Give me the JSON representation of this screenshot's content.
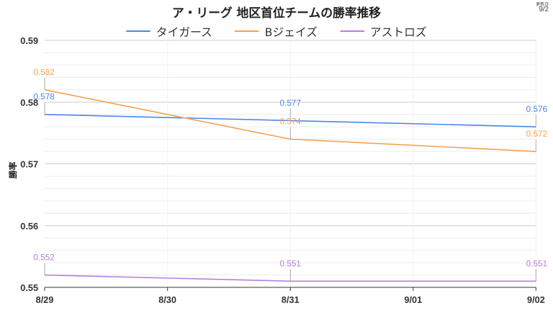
{
  "chart_data": {
    "type": "line",
    "title": "ア・リーグ 地区首位チームの勝率推移",
    "update_label": "更新日",
    "update_date": "9/2",
    "xlabel": "",
    "ylabel": "勝率",
    "ylim": [
      0.55,
      0.59
    ],
    "yticks": [
      "0.55",
      "0.56",
      "0.57",
      "0.58",
      "0.59"
    ],
    "grid": true,
    "legend_position": "top-center",
    "categories": [
      "8/29",
      "8/30",
      "8/31",
      "9/01",
      "9/02"
    ],
    "series": [
      {
        "name": "タイガース",
        "color": "#4a86e8",
        "points": [
          {
            "x": "8/29",
            "y": 0.578,
            "label": "0.578"
          },
          {
            "x": "8/31",
            "y": 0.577,
            "label": "0.577"
          },
          {
            "x": "9/02",
            "y": 0.576,
            "label": "0.576"
          }
        ]
      },
      {
        "name": "Bジェイズ",
        "color": "#f6a04d",
        "points": [
          {
            "x": "8/29",
            "y": 0.582,
            "label": "0.582"
          },
          {
            "x": "8/31",
            "y": 0.574,
            "label": "0.574"
          },
          {
            "x": "9/02",
            "y": 0.572,
            "label": "0.572"
          }
        ]
      },
      {
        "name": "アストロズ",
        "color": "#b57edc",
        "points": [
          {
            "x": "8/29",
            "y": 0.552,
            "label": "0.552"
          },
          {
            "x": "8/31",
            "y": 0.551,
            "label": "0.551"
          },
          {
            "x": "9/02",
            "y": 0.551,
            "label": "0.551"
          }
        ]
      }
    ]
  }
}
